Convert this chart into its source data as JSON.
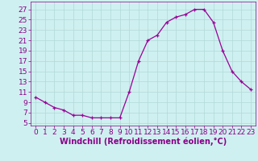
{
  "x": [
    0,
    1,
    2,
    3,
    4,
    5,
    6,
    7,
    8,
    9,
    10,
    11,
    12,
    13,
    14,
    15,
    16,
    17,
    18,
    19,
    20,
    21,
    22,
    23
  ],
  "y": [
    10,
    9,
    8,
    7.5,
    6.5,
    6.5,
    6,
    6,
    6,
    6,
    11,
    17,
    21,
    22,
    24.5,
    25.5,
    26,
    27,
    27,
    24.5,
    19,
    15,
    13,
    11.5
  ],
  "line_color": "#990099",
  "marker": "+",
  "bg_color": "#cff0f0",
  "grid_color": "#b0d8d8",
  "xlabel": "Windchill (Refroidissement éolien,°C)",
  "xlim": [
    -0.5,
    23.5
  ],
  "ylim": [
    4.5,
    28.5
  ],
  "yticks": [
    5,
    7,
    9,
    11,
    13,
    15,
    17,
    19,
    21,
    23,
    25,
    27
  ],
  "xticks": [
    0,
    1,
    2,
    3,
    4,
    5,
    6,
    7,
    8,
    9,
    10,
    11,
    12,
    13,
    14,
    15,
    16,
    17,
    18,
    19,
    20,
    21,
    22,
    23
  ],
  "tick_color": "#880088",
  "label_color": "#880088",
  "font_size": 6.5,
  "xlabel_fontsize": 7,
  "linewidth": 0.9,
  "markersize": 3.5,
  "markeredgewidth": 0.9
}
